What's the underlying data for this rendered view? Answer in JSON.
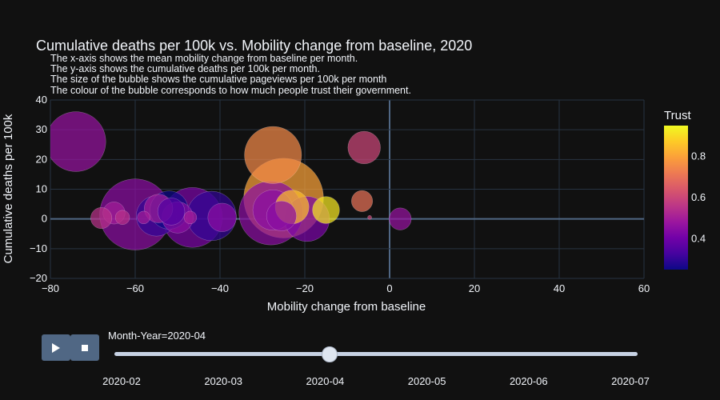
{
  "chart_data": {
    "type": "scatter",
    "subtype": "bubble",
    "title": "Cumulative deaths per 100k vs. Mobility change from baseline, 2020",
    "subtitle_lines": [
      "The x-axis shows the mean mobility change from baseline per month.",
      "The y-axis shows the cumulative deaths per 100k per month.",
      "The size of the bubble shows the cumulative pageviews per 100k per month",
      "The colour of the bubble corresponds to how much people trust their government."
    ],
    "xlabel": "Mobility change from baseline",
    "ylabel": "Cumulative deaths per 100k",
    "xlim": [
      -80,
      60
    ],
    "ylim": [
      -20,
      40
    ],
    "x_ticks": [
      "−80",
      "−60",
      "−40",
      "−20",
      "0",
      "20",
      "40",
      "60"
    ],
    "y_ticks": [
      "−20",
      "−10",
      "0",
      "10",
      "20",
      "30",
      "40"
    ],
    "grid": true,
    "colorbar": {
      "title": "Trust",
      "range": [
        0.25,
        0.95
      ],
      "ticks": [
        "0.4",
        "0.6",
        "0.8"
      ],
      "tick_values": [
        0.4,
        0.6,
        0.8
      ],
      "colorscale": [
        "#0d0887",
        "#46039f",
        "#7201a8",
        "#9c179e",
        "#bd3786",
        "#d8576b",
        "#ed7953",
        "#fb9f3a",
        "#fdca26",
        "#f0f921"
      ]
    },
    "points": [
      {
        "x": -74,
        "y": 26,
        "size": 4400,
        "trust": 0.47
      },
      {
        "x": -68,
        "y": 0.3,
        "size": 550,
        "trust": 0.55
      },
      {
        "x": -65,
        "y": 2,
        "size": 600,
        "trust": 0.5
      },
      {
        "x": -63,
        "y": 0.5,
        "size": 250,
        "trust": 0.55
      },
      {
        "x": -60,
        "y": 1.5,
        "size": 6200,
        "trust": 0.45
      },
      {
        "x": -58,
        "y": 0.5,
        "size": 200,
        "trust": 0.5
      },
      {
        "x": -55,
        "y": 1,
        "size": 2000,
        "trust": 0.3
      },
      {
        "x": -54.5,
        "y": 3.5,
        "size": 1000,
        "trust": 0.5
      },
      {
        "x": -52,
        "y": 3,
        "size": 1800,
        "trust": 0.25
      },
      {
        "x": -51.5,
        "y": 2.5,
        "size": 900,
        "trust": 0.35
      },
      {
        "x": -50,
        "y": 0.5,
        "size": 1200,
        "trust": 0.45
      },
      {
        "x": -47,
        "y": 0.5,
        "size": 200,
        "trust": 0.5
      },
      {
        "x": -46.5,
        "y": 0.5,
        "size": 4400,
        "trust": 0.42
      },
      {
        "x": -42,
        "y": 1,
        "size": 3000,
        "trust": 0.3
      },
      {
        "x": -39.5,
        "y": 0.5,
        "size": 1000,
        "trust": 0.45
      },
      {
        "x": -27.5,
        "y": 21.5,
        "size": 4000,
        "trust": 0.75
      },
      {
        "x": -28,
        "y": 2,
        "size": 5000,
        "trust": 0.45
      },
      {
        "x": -27.5,
        "y": 3,
        "size": 2000,
        "trust": 0.45
      },
      {
        "x": -25,
        "y": 7,
        "size": 7800,
        "trust": 0.8
      },
      {
        "x": -23,
        "y": 4,
        "size": 1400,
        "trust": 0.85
      },
      {
        "x": -25.5,
        "y": 1,
        "size": 1100,
        "trust": 0.45
      },
      {
        "x": -19.5,
        "y": 0,
        "size": 2500,
        "trust": 0.42
      },
      {
        "x": -15,
        "y": 3,
        "size": 900,
        "trust": 0.92
      },
      {
        "x": -6,
        "y": 24,
        "size": 1300,
        "trust": 0.6
      },
      {
        "x": -6.5,
        "y": 6,
        "size": 550,
        "trust": 0.7
      },
      {
        "x": -4.7,
        "y": 0.5,
        "size": 20,
        "trust": 0.6
      },
      {
        "x": 2.5,
        "y": 0,
        "size": 600,
        "trust": 0.47
      }
    ]
  },
  "controls": {
    "play_icon": "play-icon",
    "stop_icon": "stop-icon",
    "slider_prefix": "Month-Year=",
    "slider_current": "2020-04",
    "slider_current_index": 2,
    "slider_steps": [
      "2020-02",
      "2020-03",
      "2020-04",
      "2020-05",
      "2020-06",
      "2020-07"
    ]
  }
}
